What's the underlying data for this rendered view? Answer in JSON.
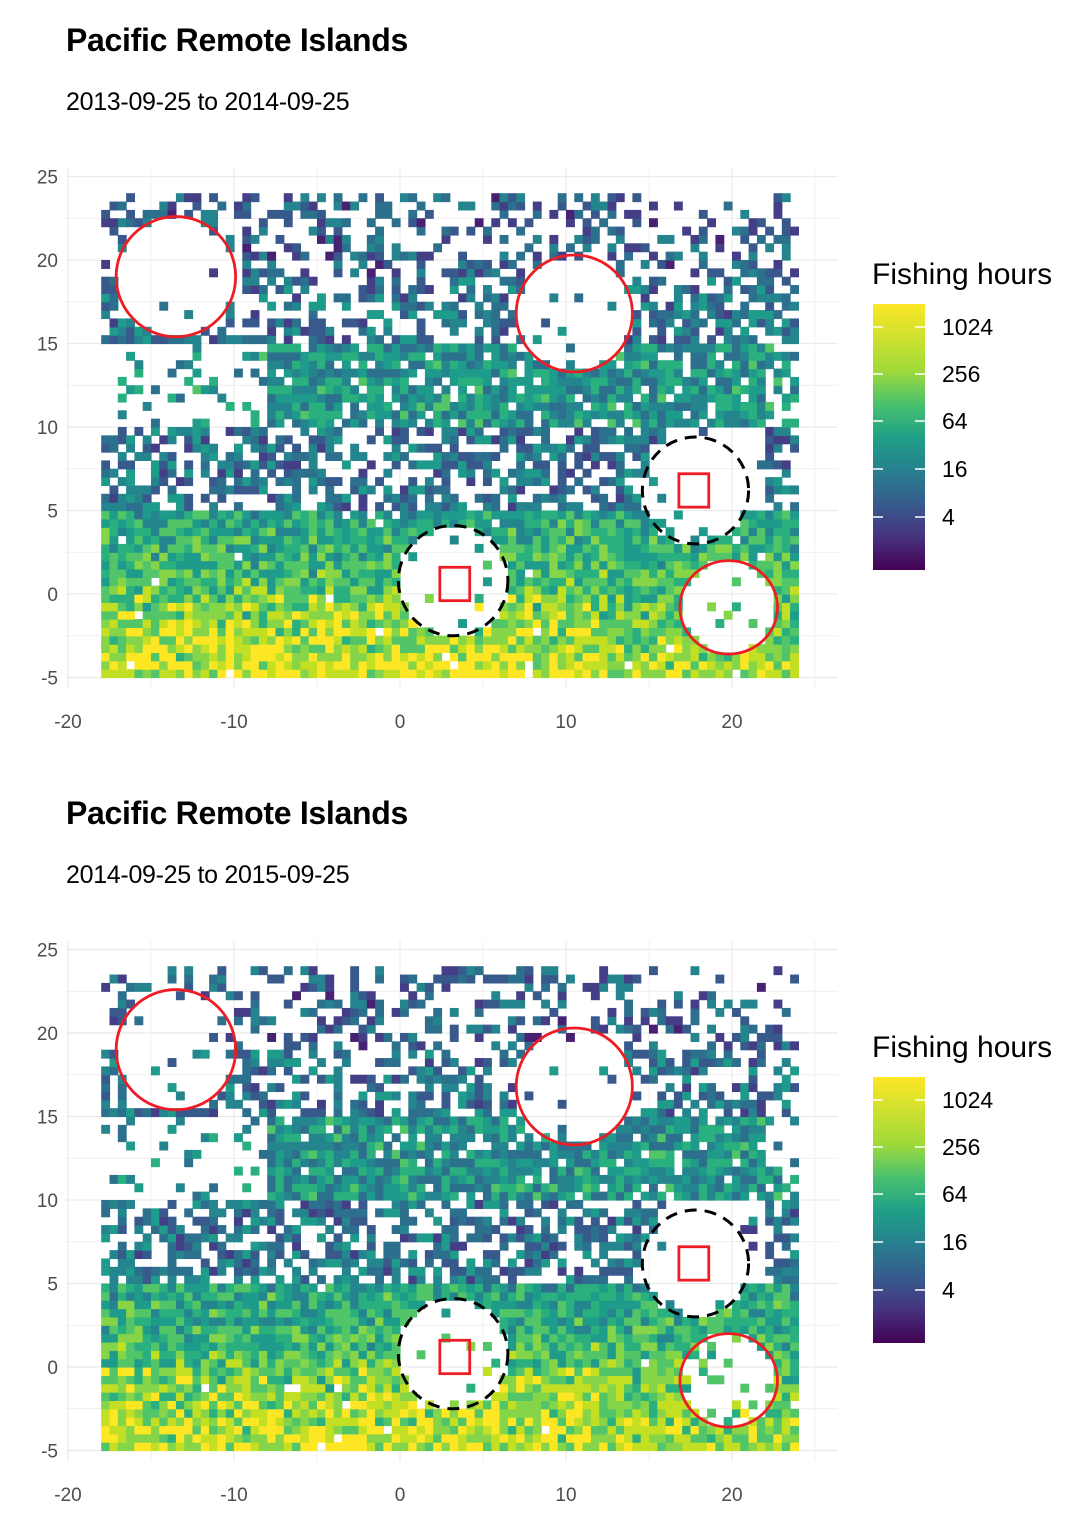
{
  "chart_data": [
    {
      "type": "heatmap",
      "title": "Pacific Remote Islands",
      "subtitle": "2013-09-25 to 2014-09-25",
      "xlabel": "",
      "ylabel": "",
      "xlim": [
        -20,
        26
      ],
      "ylim": [
        -6,
        25
      ],
      "x_ticks": [
        -20,
        -10,
        0,
        10,
        20
      ],
      "y_ticks": [
        -5,
        0,
        5,
        10,
        15,
        20,
        25
      ],
      "grid": true,
      "color_scale": "viridis",
      "legend": {
        "title": "Fishing hours",
        "position": "right",
        "breaks": [
          1024,
          256,
          64,
          16,
          4
        ]
      },
      "seed": 1337,
      "regions": {
        "red_circles": [
          {
            "cx": -13.5,
            "cy": 19,
            "r": 3.6
          },
          {
            "cx": 10.5,
            "cy": 16.8,
            "r": 3.5
          }
        ],
        "red_boxes": [
          {
            "x0": 2.4,
            "x1": 4.2,
            "y0": -0.4,
            "y1": 1.6
          },
          {
            "x0": 16.8,
            "x1": 18.6,
            "y0": 5.2,
            "y1": 7.2
          }
        ],
        "dashed_circles": [
          {
            "cx": 3.2,
            "cy": 0.8,
            "r": 3.3
          },
          {
            "cx": 17.8,
            "cy": 6.2,
            "r": 3.2
          }
        ],
        "red_blob": {
          "cx": 19.8,
          "cy": -0.8,
          "r": 2.8
        }
      }
    },
    {
      "type": "heatmap",
      "title": "Pacific Remote Islands",
      "subtitle": "2014-09-25 to 2015-09-25",
      "xlabel": "",
      "ylabel": "",
      "xlim": [
        -20,
        26
      ],
      "ylim": [
        -6,
        25
      ],
      "x_ticks": [
        -20,
        -10,
        0,
        10,
        20
      ],
      "y_ticks": [
        -5,
        0,
        5,
        10,
        15,
        20,
        25
      ],
      "grid": true,
      "color_scale": "viridis",
      "legend": {
        "title": "Fishing hours",
        "position": "right",
        "breaks": [
          1024,
          256,
          64,
          16,
          4
        ]
      },
      "seed": 4242,
      "regions": {
        "red_circles": [
          {
            "cx": -13.5,
            "cy": 19,
            "r": 3.6
          },
          {
            "cx": 10.5,
            "cy": 16.8,
            "r": 3.5
          }
        ],
        "red_boxes": [
          {
            "x0": 2.4,
            "x1": 4.2,
            "y0": -0.4,
            "y1": 1.6
          },
          {
            "x0": 16.8,
            "x1": 18.6,
            "y0": 5.2,
            "y1": 7.2
          }
        ],
        "dashed_circles": [
          {
            "cx": 3.2,
            "cy": 0.8,
            "r": 3.3
          },
          {
            "cx": 17.8,
            "cy": 6.2,
            "r": 3.2
          }
        ],
        "red_blob": {
          "cx": 19.8,
          "cy": -0.8,
          "r": 2.8
        }
      }
    }
  ]
}
